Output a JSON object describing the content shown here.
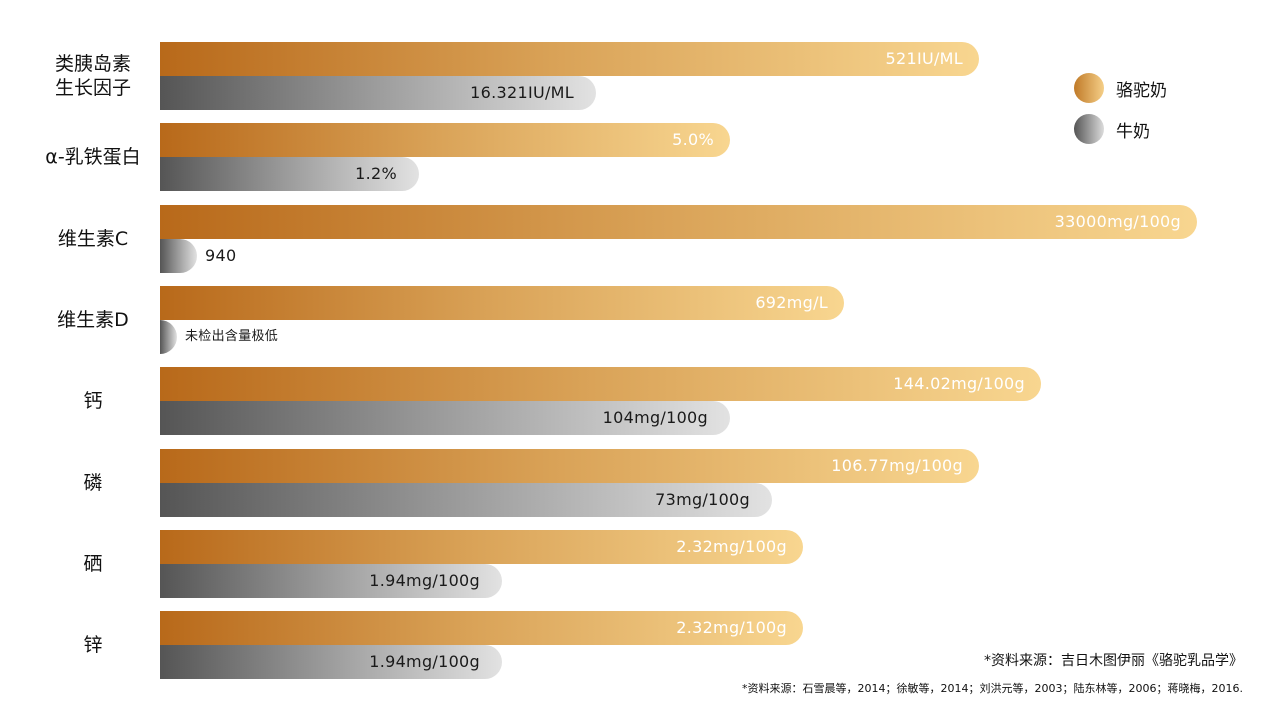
{
  "legend": {
    "camel_label": "骆驼奶",
    "cow_label": "牛奶",
    "camel_color": "#c07a28",
    "cow_color": "#888888"
  },
  "sources": {
    "main": "*资料来源：吉日木图伊丽《骆驼乳品学》",
    "detail": "*资料来源：石雪晨等，2014；徐敏等，2014；刘洪元等，2003；陆东林等，2006；蒋晓梅，2016."
  },
  "chart_data": {
    "type": "bar",
    "orientation": "horizontal",
    "series_names": [
      "骆驼奶",
      "牛奶"
    ],
    "categories": [
      {
        "label_lines": [
          "类胰岛素",
          "生长因子"
        ],
        "camel": {
          "value": 521,
          "label": "521IU/ML"
        },
        "cow": {
          "value": 16.321,
          "label": "16.321IU/ML"
        },
        "scale_note": "bar lengths not to numeric scale"
      },
      {
        "label_lines": [
          "α-乳铁蛋白"
        ],
        "camel": {
          "value": 5.0,
          "label": "5.0%"
        },
        "cow": {
          "value": 1.2,
          "label": "1.2%"
        }
      },
      {
        "label_lines": [
          "维生素C"
        ],
        "camel": {
          "value": 33000,
          "label": "33000mg/100g"
        },
        "cow": {
          "value": 940,
          "label": "940"
        }
      },
      {
        "label_lines": [
          "维生素D"
        ],
        "camel": {
          "value": 692,
          "label": "692mg/L"
        },
        "cow": {
          "value": 0,
          "label": "未检出含量极低"
        }
      },
      {
        "label_lines": [
          "钙"
        ],
        "camel": {
          "value": 144.02,
          "label": "144.02mg/100g"
        },
        "cow": {
          "value": 104,
          "label": "104mg/100g"
        }
      },
      {
        "label_lines": [
          "磷"
        ],
        "camel": {
          "value": 106.77,
          "label": "106.77mg/100g"
        },
        "cow": {
          "value": 73,
          "label": "73mg/100g"
        }
      },
      {
        "label_lines": [
          "硒"
        ],
        "camel": {
          "value": 2.32,
          "label": "2.32mg/100g"
        },
        "cow": {
          "value": 1.94,
          "label": "1.94mg/100g"
        }
      },
      {
        "label_lines": [
          "锌"
        ],
        "camel": {
          "value": 2.32,
          "label": "2.32mg/100g"
        },
        "cow": {
          "value": 1.94,
          "label": "1.94mg/100g"
        }
      }
    ],
    "bar_length_fraction": {
      "camel": [
        0.79,
        0.55,
        1.0,
        0.66,
        0.85,
        0.79,
        0.62,
        0.62
      ],
      "cow": [
        0.42,
        0.25,
        0.036,
        0.016,
        0.55,
        0.59,
        0.33,
        0.33
      ]
    }
  }
}
